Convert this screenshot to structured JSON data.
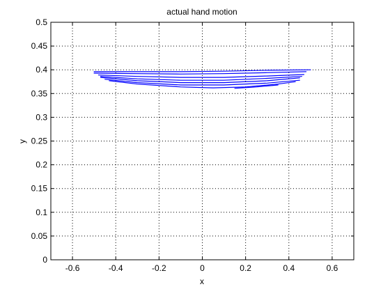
{
  "chart_data": {
    "type": "line",
    "title": "actual hand motion",
    "xlabel": "x",
    "ylabel": "y",
    "xlim": [
      -0.7,
      0.7
    ],
    "ylim": [
      0,
      0.5
    ],
    "xticks": [
      -0.6,
      -0.4,
      -0.2,
      0,
      0.2,
      0.4,
      0.6
    ],
    "xtick_labels": [
      "-0.6",
      "-0.4",
      "-0.2",
      "0",
      "0.2",
      "0.4",
      "0.6"
    ],
    "yticks": [
      0,
      0.05,
      0.1,
      0.15,
      0.2,
      0.25,
      0.3,
      0.35,
      0.4,
      0.45,
      0.5
    ],
    "ytick_labels": [
      "0",
      "0.05",
      "0.1",
      "0.15",
      "0.2",
      "0.25",
      "0.3",
      "0.35",
      "0.4",
      "0.45",
      "0.5"
    ],
    "grid": true,
    "series_color": "#0000ff",
    "series": [
      {
        "x": [
          -0.5,
          -0.3,
          -0.1,
          0.1,
          0.3,
          0.5
        ],
        "y": [
          0.396,
          0.396,
          0.396,
          0.397,
          0.399,
          0.4
        ]
      },
      {
        "x": [
          -0.5,
          -0.3,
          -0.1,
          0.1,
          0.3,
          0.48
        ],
        "y": [
          0.393,
          0.392,
          0.391,
          0.392,
          0.394,
          0.396
        ]
      },
      {
        "x": [
          -0.48,
          -0.3,
          -0.1,
          0.1,
          0.3,
          0.47
        ],
        "y": [
          0.389,
          0.386,
          0.384,
          0.384,
          0.387,
          0.39
        ]
      },
      {
        "x": [
          -0.47,
          -0.3,
          -0.1,
          0.1,
          0.3,
          0.46
        ],
        "y": [
          0.386,
          0.381,
          0.378,
          0.378,
          0.382,
          0.386
        ]
      },
      {
        "x": [
          -0.47,
          -0.3,
          -0.1,
          0.1,
          0.3,
          0.45
        ],
        "y": [
          0.384,
          0.377,
          0.373,
          0.373,
          0.377,
          0.383
        ]
      },
      {
        "x": [
          -0.45,
          -0.3,
          -0.1,
          0.1,
          0.3,
          0.45
        ],
        "y": [
          0.38,
          0.373,
          0.368,
          0.368,
          0.372,
          0.378
        ]
      },
      {
        "x": [
          -0.43,
          -0.3,
          -0.1,
          0.05,
          0.2,
          0.35,
          0.43
        ],
        "y": [
          0.377,
          0.37,
          0.364,
          0.362,
          0.364,
          0.37,
          0.375
        ]
      },
      {
        "x": [
          0.15,
          0.25,
          0.35
        ],
        "y": [
          0.361,
          0.364,
          0.368
        ]
      }
    ]
  }
}
